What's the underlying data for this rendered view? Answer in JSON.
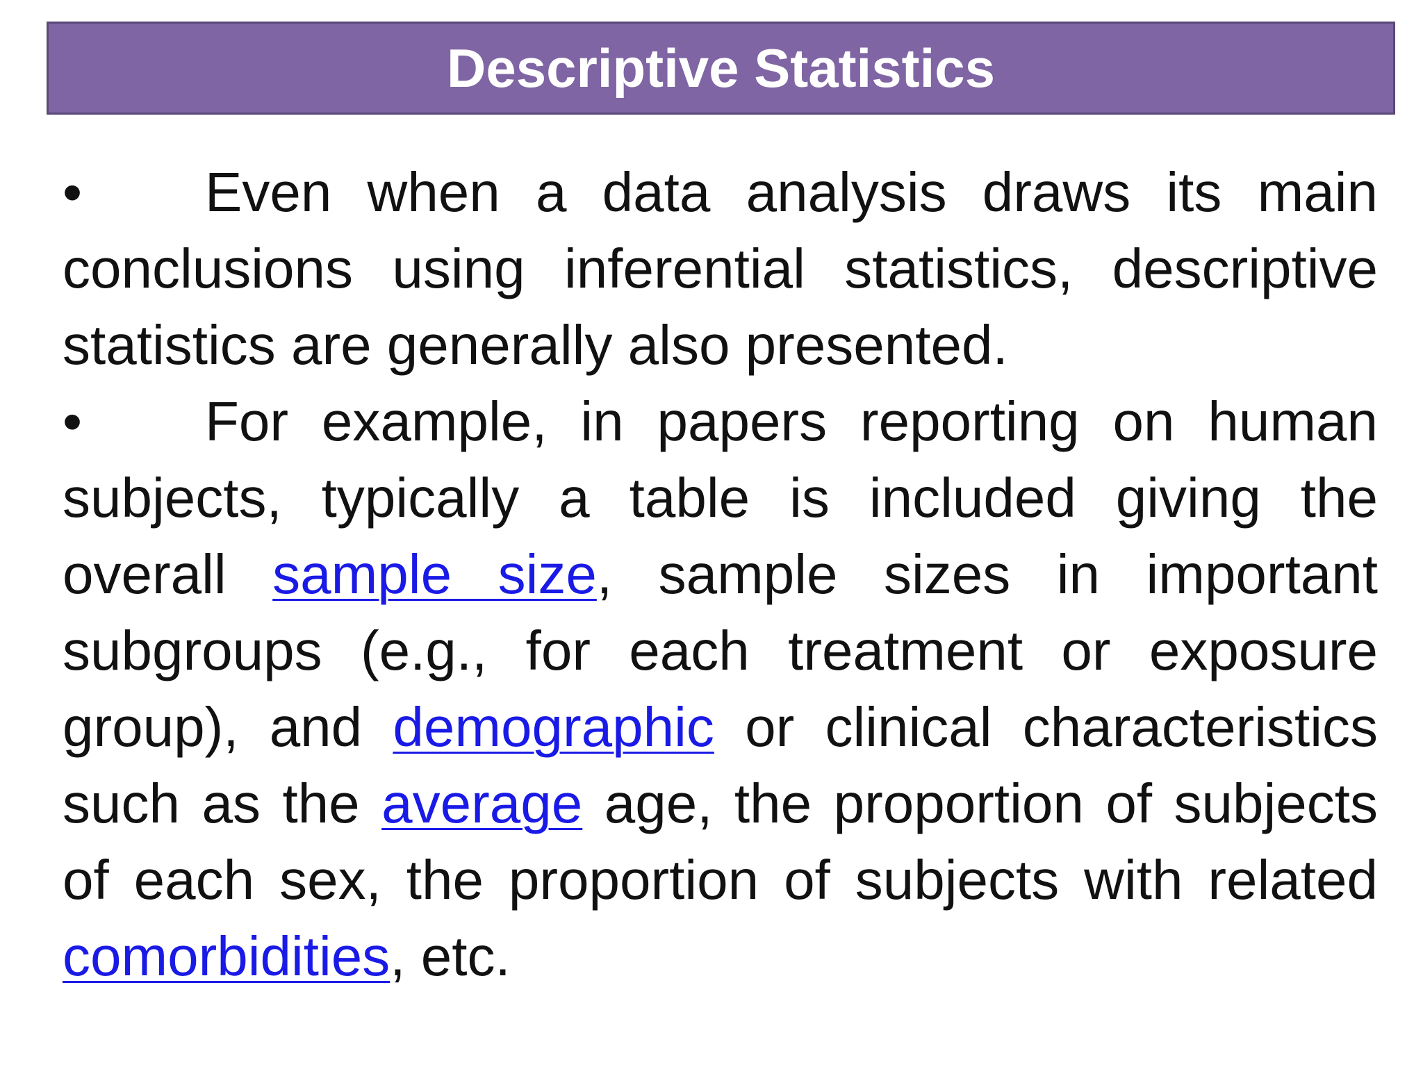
{
  "title": "Descriptive Statistics",
  "colors": {
    "title_bg": "#7f65a3",
    "title_border": "#5a4878",
    "link": "#1a1ae6"
  },
  "bullet_symbol": "•",
  "bullets": [
    {
      "text": "Even when a data analysis draws its main conclusions using inferential statistics, descriptive statistics are generally also presented."
    },
    {
      "t1": "For example, in papers reporting on human subjects, typically a table is included giving the overall ",
      "link1": "sample size",
      "t2": ", sample sizes in important subgroups (e.g., for each treatment or exposure group), and ",
      "link2": "demographic",
      "t3": " or clinical characteristics such as the ",
      "link3": "average",
      "t4": " age, the proportion of subjects of each sex, the proportion of subjects with related ",
      "link4": "comorbidities",
      "t5": ", etc."
    }
  ]
}
